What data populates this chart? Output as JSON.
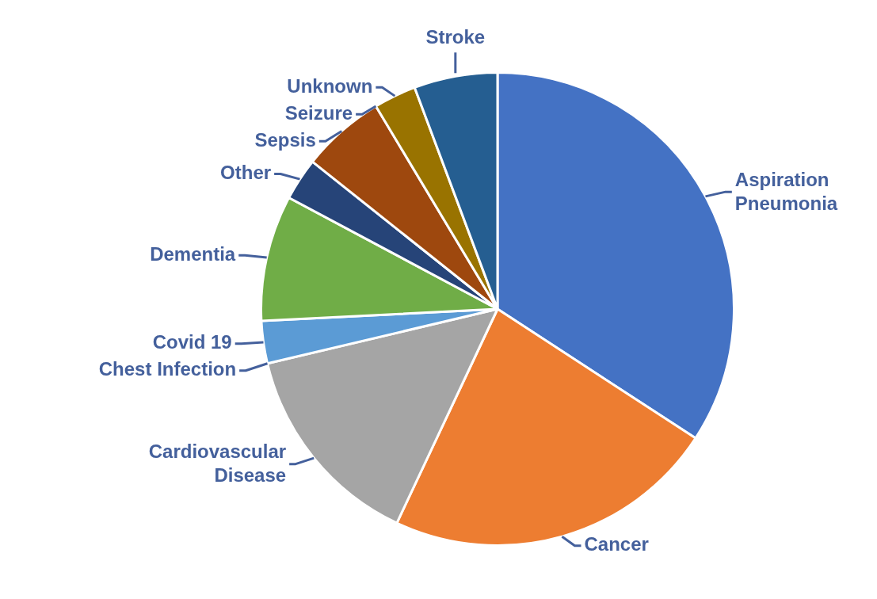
{
  "chart_data": {
    "type": "pie",
    "categories": [
      "Aspiration Pneumonia",
      "Cancer",
      "Cardiovascular Disease",
      "Chest Infection",
      "Covid 19",
      "Dementia",
      "Other",
      "Sepsis",
      "Seizure",
      "Unknown",
      "Stroke"
    ],
    "values": [
      34.2,
      22.8,
      14.3,
      0,
      2.9,
      8.6,
      2.9,
      5.7,
      0,
      2.9,
      5.7
    ],
    "colors": [
      "#4472c4",
      "#ed7d31",
      "#a5a5a5",
      "#ffc000",
      "#5b9bd5",
      "#70ad47",
      "#264478",
      "#9e480e",
      "#636363",
      "#997300",
      "#255e91"
    ]
  }
}
